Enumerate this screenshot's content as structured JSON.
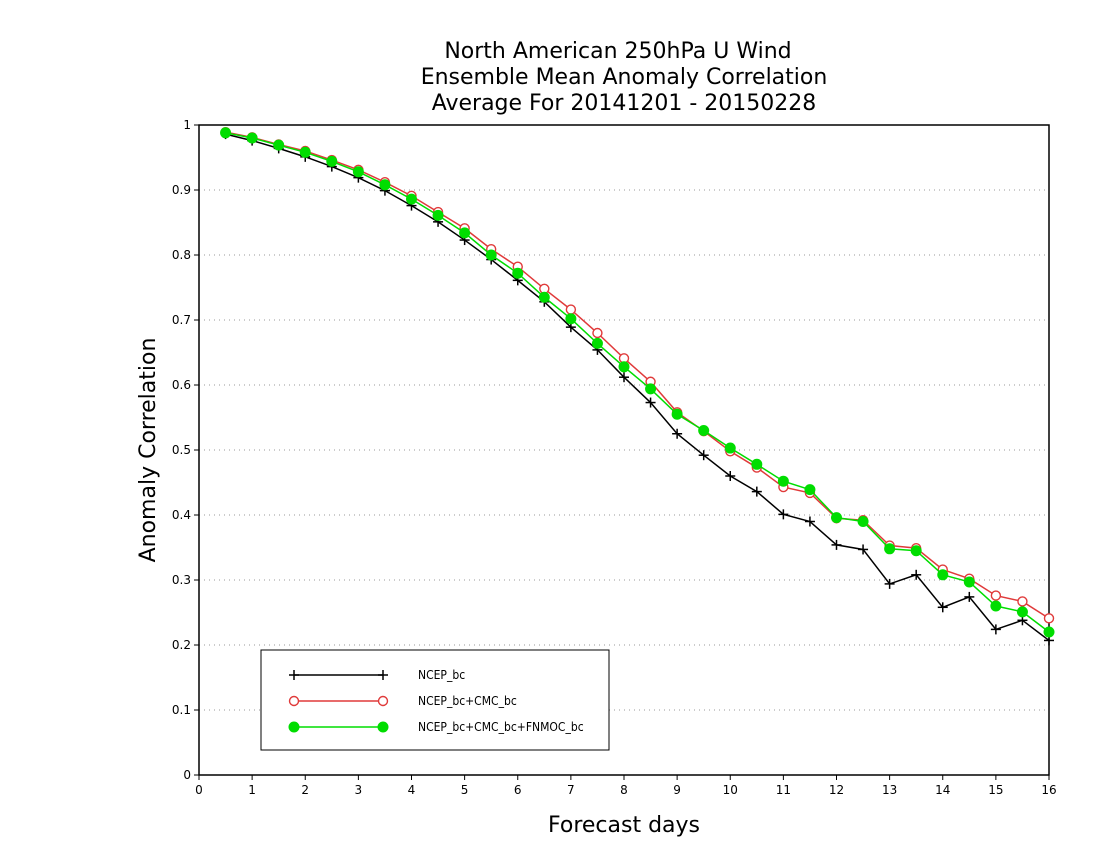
{
  "chart_data": {
    "type": "line",
    "title": [
      "North American 250hPa U Wind",
      "Ensemble Mean Anomaly Correlation",
      "Average For 20141201 - 20150228"
    ],
    "xlabel": "Forecast days",
    "ylabel": "Anomaly Correlation",
    "xlim": [
      0,
      16
    ],
    "ylim": [
      0,
      1
    ],
    "xticks": [
      "0",
      "1",
      "2",
      "3",
      "4",
      "5",
      "6",
      "7",
      "8",
      "9",
      "10",
      "11",
      "12",
      "13",
      "14",
      "15",
      "16"
    ],
    "yticks": [
      "0",
      "0.1",
      "0.2",
      "0.3",
      "0.4",
      "0.5",
      "0.6",
      "0.7",
      "0.8",
      "0.9",
      "1"
    ],
    "grid": "dotted horizontal",
    "legend_position": "bottom-left",
    "x": [
      0.5,
      1,
      1.5,
      2,
      2.5,
      3,
      3.5,
      4,
      4.5,
      5,
      5.5,
      6,
      6.5,
      7,
      7.5,
      8,
      8.5,
      9,
      9.5,
      10,
      10.5,
      11,
      11.5,
      12,
      12.5,
      13,
      13.5,
      14,
      14.5,
      15,
      15.5,
      16
    ],
    "series": [
      {
        "name": "NCEP_bc",
        "color": "#000000",
        "marker": "plus",
        "values": [
          0.986,
          0.976,
          0.964,
          0.951,
          0.936,
          0.919,
          0.899,
          0.876,
          0.851,
          0.823,
          0.793,
          0.761,
          0.728,
          0.689,
          0.654,
          0.612,
          0.573,
          0.525,
          0.492,
          0.46,
          0.436,
          0.401,
          0.39,
          0.354,
          0.347,
          0.294,
          0.308,
          0.258,
          0.274,
          0.224,
          0.238,
          0.207
        ]
      },
      {
        "name": "NCEP_bc+CMC_bc",
        "color": "#e03a3a",
        "marker": "open-circle",
        "values": [
          0.989,
          0.981,
          0.97,
          0.96,
          0.946,
          0.931,
          0.912,
          0.891,
          0.866,
          0.841,
          0.809,
          0.782,
          0.748,
          0.716,
          0.68,
          0.641,
          0.605,
          0.558,
          0.529,
          0.498,
          0.473,
          0.443,
          0.434,
          0.395,
          0.392,
          0.353,
          0.349,
          0.316,
          0.302,
          0.276,
          0.267,
          0.241
        ]
      },
      {
        "name": "NCEP_bc+CMC_bc+FNMOC_bc",
        "color": "#00dd00",
        "marker": "filled-circle",
        "values": [
          0.988,
          0.98,
          0.969,
          0.958,
          0.944,
          0.928,
          0.908,
          0.886,
          0.861,
          0.834,
          0.8,
          0.772,
          0.735,
          0.702,
          0.664,
          0.628,
          0.594,
          0.555,
          0.53,
          0.503,
          0.478,
          0.452,
          0.439,
          0.396,
          0.39,
          0.348,
          0.345,
          0.308,
          0.297,
          0.26,
          0.251,
          0.22
        ]
      }
    ]
  }
}
